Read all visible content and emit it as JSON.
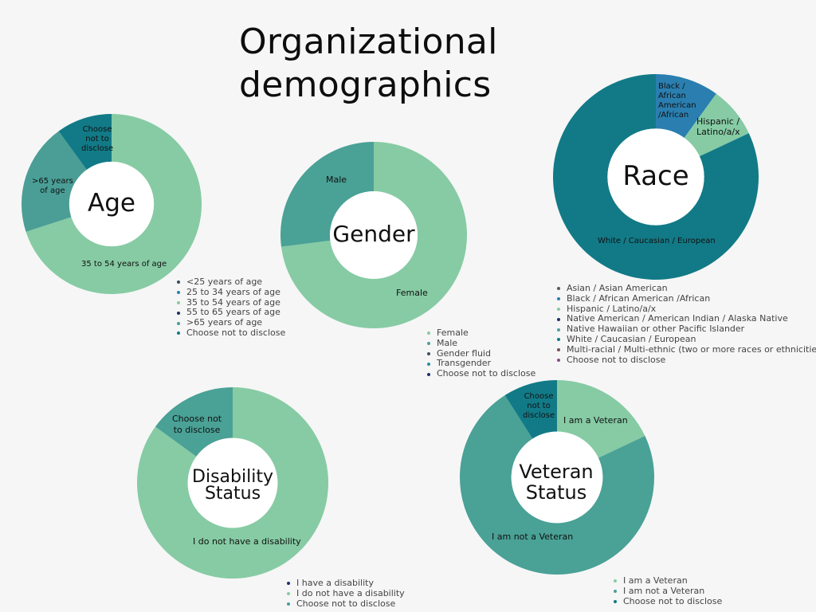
{
  "page": {
    "title_line1": "Organizational",
    "title_line2": "demographics"
  },
  "chart_data": [
    {
      "id": "age",
      "type": "pie",
      "title": "Age",
      "categories": [
        "<25 years of age",
        "25 to 34 years of age",
        "35 to 54 years of age",
        "55 to 65 years of age",
        ">65 years of age",
        "Choose not to disclose"
      ],
      "values": [
        0,
        0,
        70,
        0,
        20,
        10
      ],
      "colors": [
        "#3a4a60",
        "#2a7fb0",
        "#86cba4",
        "#1e2f6b",
        "#4a9e96",
        "#127a87"
      ],
      "segment_labels": [
        {
          "category": "35 to 54 years of age",
          "text": "35 to 54 years of age"
        },
        {
          "category": ">65 years of age",
          "text": ">65 years\nof age"
        },
        {
          "category": "Choose not to disclose",
          "text": "Choose\nnot to\ndisclose"
        }
      ]
    },
    {
      "id": "gender",
      "type": "pie",
      "title": "Gender",
      "categories": [
        "Female",
        "Male",
        "Gender fluid",
        "Transgender",
        "Choose not to disclose"
      ],
      "values": [
        73,
        27,
        0,
        0,
        0
      ],
      "colors": [
        "#86cba4",
        "#4aa196",
        "#444e5c",
        "#2a8ea0",
        "#1e2f6b"
      ],
      "segment_labels": [
        {
          "category": "Female",
          "text": "Female"
        },
        {
          "category": "Male",
          "text": "Male"
        }
      ]
    },
    {
      "id": "race",
      "type": "pie",
      "title": "Race",
      "categories": [
        "Asian / Asian American",
        "Black / African American /African",
        "Hispanic / Latino/a/x",
        "Native American / American Indian / Alaska Native",
        "Native Hawaiian or other Pacific Islander",
        "White / Caucasian / European",
        "Multi-racial / Multi-ethnic (two or more races or ethnicities)",
        "Choose not to disclose"
      ],
      "values": [
        0,
        10,
        8,
        0,
        0,
        82,
        0,
        0
      ],
      "colors": [
        "#505a66",
        "#2a7fb0",
        "#86cba4",
        "#1e2f6b",
        "#4aa196",
        "#127a87",
        "#7a4b5e",
        "#8a4b7e"
      ],
      "segment_labels": [
        {
          "category": "Black / African American /African",
          "text": "Black /\nAfrican\nAmerican\n/African"
        },
        {
          "category": "Hispanic / Latino/a/x",
          "text": "Hispanic /\nLatino/a/x"
        },
        {
          "category": "White / Caucasian / European",
          "text": "White / Caucasian / European"
        }
      ]
    },
    {
      "id": "disability",
      "type": "pie",
      "title": "Disability Status",
      "categories": [
        "I have a disability",
        "I do not have a disability",
        "Choose not to disclose"
      ],
      "values": [
        0,
        85,
        15
      ],
      "colors": [
        "#1e2f6b",
        "#86cba4",
        "#4aa196"
      ],
      "segment_labels": [
        {
          "category": "I do not have a disability",
          "text": "I do not have a disability"
        },
        {
          "category": "Choose not to disclose",
          "text": "Choose not\nto disclose"
        }
      ]
    },
    {
      "id": "veteran",
      "type": "pie",
      "title": "Veteran Status",
      "categories": [
        "I am a Veteran",
        "I am not a Veteran",
        "Choose not to disclose"
      ],
      "values": [
        18,
        73,
        9
      ],
      "colors": [
        "#86cba4",
        "#4aa196",
        "#127a87"
      ],
      "segment_labels": [
        {
          "category": "I am a Veteran",
          "text": "I am a Veteran"
        },
        {
          "category": "I am not a Veteran",
          "text": "I am not a Veteran"
        },
        {
          "category": "Choose not to disclose",
          "text": "Choose\nnot to\ndisclose"
        }
      ]
    }
  ]
}
